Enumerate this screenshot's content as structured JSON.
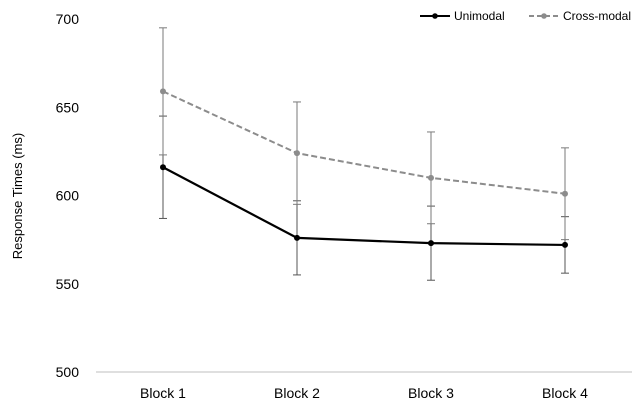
{
  "chart_data": {
    "type": "line",
    "categories": [
      "Block 1",
      "Block 2",
      "Block 3",
      "Block 4"
    ],
    "ylabel": "Response Times (ms)",
    "xlabel": "",
    "ylim": [
      500,
      700
    ],
    "yticks": [
      500,
      550,
      600,
      650,
      700
    ],
    "grid": false,
    "legend_position": "top-right",
    "series": [
      {
        "name": "Unimodal",
        "values": [
          616,
          576,
          573,
          572
        ],
        "error": [
          29,
          21,
          21,
          16
        ],
        "color": "#000000",
        "style": "solid"
      },
      {
        "name": "Cross-modal",
        "values": [
          659,
          624,
          610,
          601
        ],
        "error": [
          36,
          29,
          26,
          26
        ],
        "color": "#8c8c8c",
        "style": "dashed"
      }
    ]
  }
}
